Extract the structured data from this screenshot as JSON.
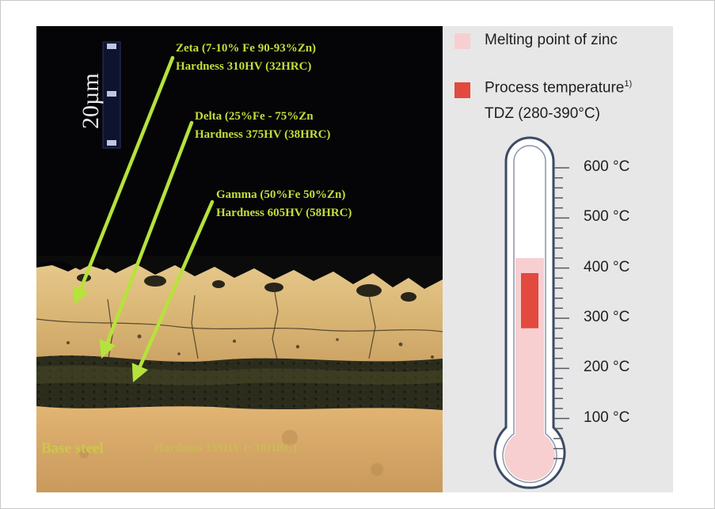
{
  "micrograph": {
    "scale_bar_label": "20µm",
    "zeta": {
      "line1": "Zeta (7-10% Fe 90-93%Zn)",
      "line2": "Hardness 310HV (32HRC)"
    },
    "delta": {
      "line1": "Delta (25%Fe - 75%Zn",
      "line2": "Hardness 375HV (38HRC)"
    },
    "gamma": {
      "line1": "Gamma (50%Fe 50%Zn)",
      "line2": "Hardness 605HV (58HRC)"
    },
    "base_steel": "Base steel",
    "base_hardness": "Hardness 159HV (<10HRC)",
    "arrow_color": "#b6e23c"
  },
  "legend": {
    "melting_point": {
      "label": "Melting point of zinc",
      "color": "#f7cfd1"
    },
    "process_temperature": {
      "label": "Process temperature",
      "superscript": "1)",
      "color": "#e2493f"
    },
    "tdz": "TDZ (280-390°C)"
  },
  "thermometer": {
    "min_c": 0,
    "max_c": 600,
    "melting_point_zinc_c": 420,
    "process_range_c": [
      280,
      390
    ],
    "tick_labels": [
      "600 °C",
      "500 °C",
      "400 °C",
      "300 °C",
      "200 °C",
      "100 °C"
    ],
    "tick_values": [
      600,
      500,
      400,
      300,
      200,
      100
    ]
  }
}
